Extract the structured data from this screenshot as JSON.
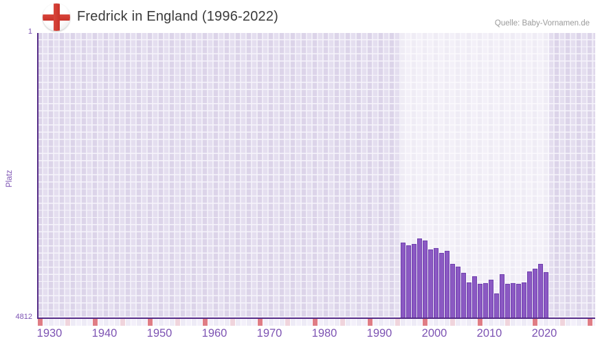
{
  "header": {
    "title": "Fredrick in England (1996-2022)",
    "source": "Quelle: Baby-Vornamen.de"
  },
  "icons": {
    "flag": "england-flag-icon"
  },
  "y_axis": {
    "title": "Platz",
    "top_label": "1",
    "bottom_label": "4812"
  },
  "chart_data": {
    "type": "bar",
    "title": "Fredrick in England (1996-2022)",
    "xlabel": "",
    "ylabel": "Platz",
    "y_axis_reversed": true,
    "ylim": [
      1,
      4812
    ],
    "xlim": [
      1930,
      2031
    ],
    "grid": true,
    "legend": false,
    "x_tick_labels": [
      "1930",
      "1940",
      "1950",
      "1960",
      "1970",
      "1980",
      "1990",
      "2000",
      "2010",
      "2020"
    ],
    "highlight_band": [
      1996,
      2023
    ],
    "series_name": "Platz",
    "categories": [
      1996,
      1997,
      1998,
      1999,
      2000,
      2001,
      2002,
      2003,
      2004,
      2005,
      2006,
      2007,
      2008,
      2009,
      2010,
      2011,
      2012,
      2013,
      2014,
      2015,
      2016,
      2017,
      2018,
      2019,
      2020,
      2021,
      2022
    ],
    "values": [
      3549,
      3588,
      3572,
      3479,
      3507,
      3665,
      3638,
      3716,
      3685,
      3909,
      3948,
      4053,
      4219,
      4118,
      4246,
      4227,
      4176,
      4409,
      4083,
      4246,
      4227,
      4239,
      4215,
      4033,
      3983,
      3909,
      4045
    ]
  },
  "colors": {
    "bar_fill": "#8b59c3",
    "bar_border": "#6f3fae",
    "axis_line": "#552b87",
    "label_purple": "#7d53b3",
    "column_dark": "#dcd4e9",
    "column_light": "#e4deef",
    "grid_line": "#f6f4fb",
    "strip_decade": "#e07d85",
    "strip_half_decade": "#f0d4dc",
    "strip_even": "#eeebf6",
    "strip_odd": "#f3f0fa",
    "flag_red": "#d03a30",
    "title_text": "#3a3a3a",
    "source_text": "#9a9a9a"
  }
}
